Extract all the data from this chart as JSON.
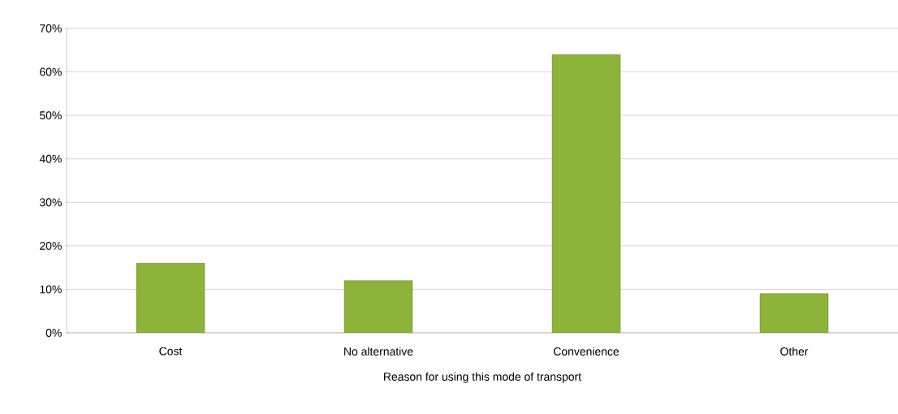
{
  "chart_data": {
    "type": "bar",
    "xlabel": "Reason for using this mode of transport",
    "categories": [
      "Cost",
      "No alternative",
      "Convenience",
      "Other"
    ],
    "values": [
      16,
      12,
      64,
      9
    ],
    "color": "#8db33a",
    "ylim": [
      0,
      70
    ],
    "yticks": [
      {
        "value": 0,
        "label": "0%"
      },
      {
        "value": 10,
        "label": "10%"
      },
      {
        "value": 20,
        "label": "20%"
      },
      {
        "value": 30,
        "label": "30%"
      },
      {
        "value": 40,
        "label": "40%"
      },
      {
        "value": 50,
        "label": "50%"
      },
      {
        "value": 60,
        "label": "60%"
      },
      {
        "value": 70,
        "label": "70%"
      }
    ],
    "grid": "y"
  }
}
